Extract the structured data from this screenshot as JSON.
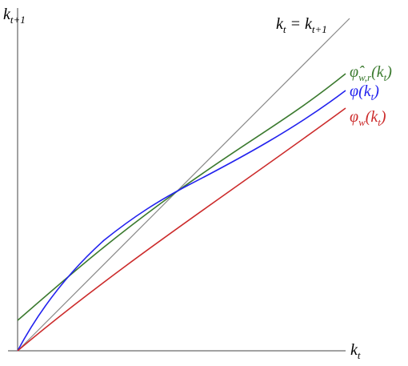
{
  "axes": {
    "y_label": {
      "main": "k",
      "sub": "t+1"
    },
    "x_label": {
      "main": "k",
      "sub": "t"
    }
  },
  "curves": {
    "identity": {
      "main": "k",
      "sub": "t",
      "eq": " = k",
      "sub2": "t+1"
    },
    "phi_hat": {
      "main": "φ̂",
      "sub": "w,r",
      "arg": "(k",
      "arg_sub": "t",
      "close": ")"
    },
    "phi": {
      "main": "φ(k",
      "sub": "t",
      "close": ")"
    },
    "phi_w": {
      "main": "φ",
      "sub": "w",
      "arg": "(k",
      "arg_sub": "t",
      "close": ")"
    }
  }
}
